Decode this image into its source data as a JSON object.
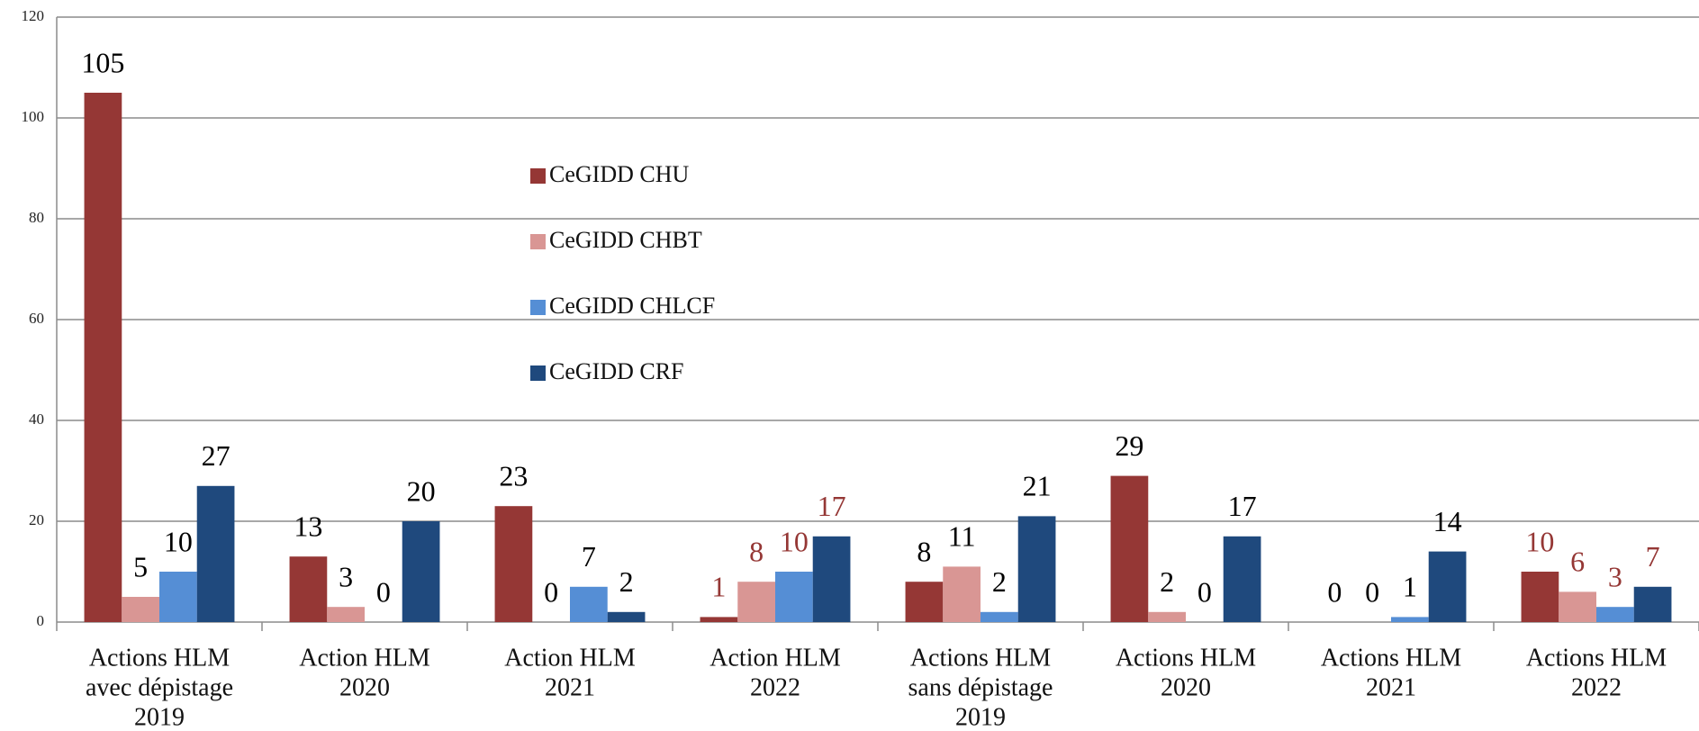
{
  "chart_data": {
    "type": "bar",
    "categories": [
      [
        "Actions HLM",
        "avec dépistage",
        "2019"
      ],
      [
        "Action HLM",
        "2020"
      ],
      [
        "Action HLM",
        "2021"
      ],
      [
        "Action HLM",
        "2022"
      ],
      [
        "Actions HLM",
        "sans dépistage",
        "2019"
      ],
      [
        "Actions HLM",
        "2020"
      ],
      [
        "Actions HLM",
        "2021"
      ],
      [
        "Actions HLM",
        "2022"
      ]
    ],
    "series": [
      {
        "name": "CeGIDD CHU",
        "color": "#953735",
        "values": [
          105,
          13,
          23,
          1,
          8,
          29,
          0,
          10
        ]
      },
      {
        "name": "CeGIDD CHBT",
        "color": "#d99694",
        "values": [
          5,
          3,
          0,
          8,
          11,
          2,
          0,
          6
        ]
      },
      {
        "name": "CeGIDD CHLCF",
        "color": "#558ed5",
        "values": [
          10,
          0,
          7,
          10,
          2,
          0,
          1,
          3
        ]
      },
      {
        "name": "CeGIDD CRF",
        "color": "#1f497d",
        "values": [
          27,
          20,
          2,
          17,
          21,
          17,
          14,
          7
        ]
      }
    ],
    "label_colors": [
      "#000000",
      "#000000",
      "#000000",
      "#953735",
      "#000000",
      "#000000",
      "#000000",
      "#953735"
    ],
    "ylim": [
      0,
      120
    ],
    "yticks": [
      0,
      20,
      40,
      60,
      80,
      100,
      120
    ],
    "grid": true
  }
}
